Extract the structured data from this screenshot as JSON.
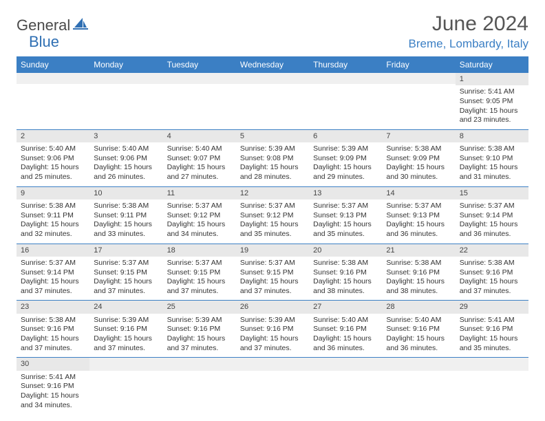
{
  "brand": {
    "name1": "General",
    "name2": "Blue",
    "color1": "#4a4a4a",
    "color2": "#2f6fb3"
  },
  "title": "June 2024",
  "location": "Breme, Lombardy, Italy",
  "colors": {
    "header_bg": "#3b7fc4",
    "header_text": "#ffffff",
    "daynum_bg": "#e8e8e8",
    "border": "#3b7fc4"
  },
  "weekdays": [
    "Sunday",
    "Monday",
    "Tuesday",
    "Wednesday",
    "Thursday",
    "Friday",
    "Saturday"
  ],
  "weeks": [
    [
      null,
      null,
      null,
      null,
      null,
      null,
      {
        "n": "1",
        "sr": "5:41 AM",
        "ss": "9:05 PM",
        "dl": "15 hours and 23 minutes."
      }
    ],
    [
      {
        "n": "2",
        "sr": "5:40 AM",
        "ss": "9:06 PM",
        "dl": "15 hours and 25 minutes."
      },
      {
        "n": "3",
        "sr": "5:40 AM",
        "ss": "9:06 PM",
        "dl": "15 hours and 26 minutes."
      },
      {
        "n": "4",
        "sr": "5:40 AM",
        "ss": "9:07 PM",
        "dl": "15 hours and 27 minutes."
      },
      {
        "n": "5",
        "sr": "5:39 AM",
        "ss": "9:08 PM",
        "dl": "15 hours and 28 minutes."
      },
      {
        "n": "6",
        "sr": "5:39 AM",
        "ss": "9:09 PM",
        "dl": "15 hours and 29 minutes."
      },
      {
        "n": "7",
        "sr": "5:38 AM",
        "ss": "9:09 PM",
        "dl": "15 hours and 30 minutes."
      },
      {
        "n": "8",
        "sr": "5:38 AM",
        "ss": "9:10 PM",
        "dl": "15 hours and 31 minutes."
      }
    ],
    [
      {
        "n": "9",
        "sr": "5:38 AM",
        "ss": "9:11 PM",
        "dl": "15 hours and 32 minutes."
      },
      {
        "n": "10",
        "sr": "5:38 AM",
        "ss": "9:11 PM",
        "dl": "15 hours and 33 minutes."
      },
      {
        "n": "11",
        "sr": "5:37 AM",
        "ss": "9:12 PM",
        "dl": "15 hours and 34 minutes."
      },
      {
        "n": "12",
        "sr": "5:37 AM",
        "ss": "9:12 PM",
        "dl": "15 hours and 35 minutes."
      },
      {
        "n": "13",
        "sr": "5:37 AM",
        "ss": "9:13 PM",
        "dl": "15 hours and 35 minutes."
      },
      {
        "n": "14",
        "sr": "5:37 AM",
        "ss": "9:13 PM",
        "dl": "15 hours and 36 minutes."
      },
      {
        "n": "15",
        "sr": "5:37 AM",
        "ss": "9:14 PM",
        "dl": "15 hours and 36 minutes."
      }
    ],
    [
      {
        "n": "16",
        "sr": "5:37 AM",
        "ss": "9:14 PM",
        "dl": "15 hours and 37 minutes."
      },
      {
        "n": "17",
        "sr": "5:37 AM",
        "ss": "9:15 PM",
        "dl": "15 hours and 37 minutes."
      },
      {
        "n": "18",
        "sr": "5:37 AM",
        "ss": "9:15 PM",
        "dl": "15 hours and 37 minutes."
      },
      {
        "n": "19",
        "sr": "5:37 AM",
        "ss": "9:15 PM",
        "dl": "15 hours and 37 minutes."
      },
      {
        "n": "20",
        "sr": "5:38 AM",
        "ss": "9:16 PM",
        "dl": "15 hours and 38 minutes."
      },
      {
        "n": "21",
        "sr": "5:38 AM",
        "ss": "9:16 PM",
        "dl": "15 hours and 38 minutes."
      },
      {
        "n": "22",
        "sr": "5:38 AM",
        "ss": "9:16 PM",
        "dl": "15 hours and 37 minutes."
      }
    ],
    [
      {
        "n": "23",
        "sr": "5:38 AM",
        "ss": "9:16 PM",
        "dl": "15 hours and 37 minutes."
      },
      {
        "n": "24",
        "sr": "5:39 AM",
        "ss": "9:16 PM",
        "dl": "15 hours and 37 minutes."
      },
      {
        "n": "25",
        "sr": "5:39 AM",
        "ss": "9:16 PM",
        "dl": "15 hours and 37 minutes."
      },
      {
        "n": "26",
        "sr": "5:39 AM",
        "ss": "9:16 PM",
        "dl": "15 hours and 37 minutes."
      },
      {
        "n": "27",
        "sr": "5:40 AM",
        "ss": "9:16 PM",
        "dl": "15 hours and 36 minutes."
      },
      {
        "n": "28",
        "sr": "5:40 AM",
        "ss": "9:16 PM",
        "dl": "15 hours and 36 minutes."
      },
      {
        "n": "29",
        "sr": "5:41 AM",
        "ss": "9:16 PM",
        "dl": "15 hours and 35 minutes."
      }
    ],
    [
      {
        "n": "30",
        "sr": "5:41 AM",
        "ss": "9:16 PM",
        "dl": "15 hours and 34 minutes."
      },
      null,
      null,
      null,
      null,
      null,
      null
    ]
  ],
  "labels": {
    "sunrise": "Sunrise:",
    "sunset": "Sunset:",
    "daylight": "Daylight:"
  }
}
